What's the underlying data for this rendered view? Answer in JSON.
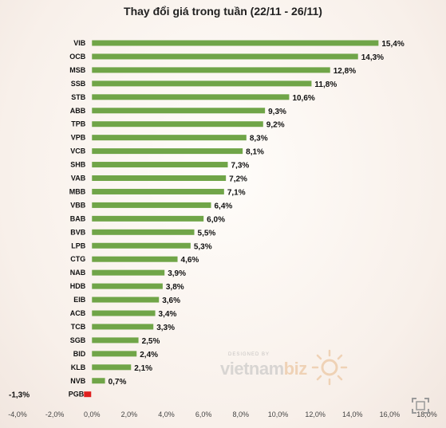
{
  "chart_data": {
    "type": "bar",
    "orientation": "horizontal",
    "title": "Thay đổi giá trong tuần (22/11 - 26/11)",
    "categories": [
      "VIB",
      "OCB",
      "MSB",
      "SSB",
      "STB",
      "ABB",
      "TPB",
      "VPB",
      "VCB",
      "SHB",
      "VAB",
      "MBB",
      "VBB",
      "BAB",
      "BVB",
      "LPB",
      "CTG",
      "NAB",
      "HDB",
      "EIB",
      "ACB",
      "TCB",
      "SGB",
      "BID",
      "KLB",
      "NVB",
      "PGB"
    ],
    "values": [
      15.4,
      14.3,
      12.8,
      11.8,
      10.6,
      9.3,
      9.2,
      8.3,
      8.1,
      7.3,
      7.2,
      7.1,
      6.4,
      6.0,
      5.5,
      5.3,
      4.6,
      3.9,
      3.8,
      3.6,
      3.4,
      3.3,
      2.5,
      2.4,
      2.1,
      0.7,
      -1.3
    ],
    "value_labels": [
      "15,4%",
      "14,3%",
      "12,8%",
      "11,8%",
      "10,6%",
      "9,3%",
      "9,2%",
      "8,3%",
      "8,1%",
      "7,3%",
      "7,2%",
      "7,1%",
      "6,4%",
      "6,0%",
      "5,5%",
      "5,3%",
      "4,6%",
      "3,9%",
      "3,8%",
      "3,6%",
      "3,4%",
      "3,3%",
      "2,5%",
      "2,4%",
      "2,1%",
      "0,7%",
      "-1,3%"
    ],
    "xlim": [
      -4,
      18
    ],
    "x_ticks": [
      -4,
      -2,
      0,
      2,
      4,
      6,
      8,
      10,
      12,
      14,
      16,
      18
    ],
    "x_tick_labels": [
      "-4,0%",
      "-2,0%",
      "0,0%",
      "2,0%",
      "4,0%",
      "6,0%",
      "8,0%",
      "10,0%",
      "12,0%",
      "14,0%",
      "16,0%",
      "18,0%"
    ],
    "colors": {
      "positive": "#70a548",
      "negative": "#e0201f"
    },
    "grid": false
  },
  "watermark": {
    "small": "DESIGNED BY",
    "brand_main": "vietnam",
    "brand_accent": "biz"
  },
  "icons": {
    "expand": "expand-icon"
  }
}
